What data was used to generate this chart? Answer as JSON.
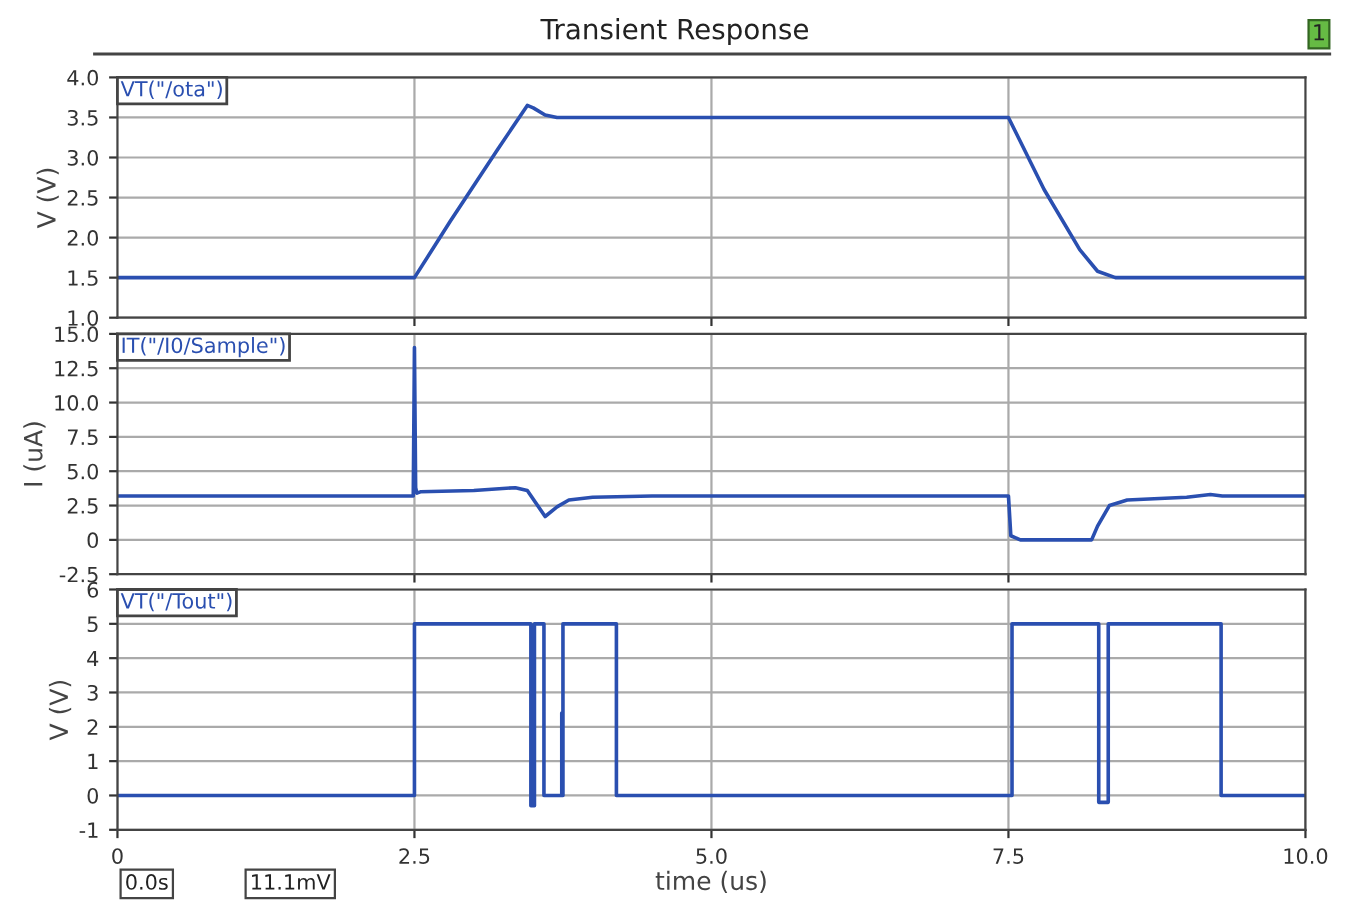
{
  "chart_data": [
    {
      "type": "line",
      "title": "Transient Response",
      "ylabel": "V (V)",
      "grid": true,
      "legend": "top left",
      "tick_labels": "y",
      "xlim": [
        0,
        10
      ],
      "xticks": [
        {
          "value": 2.5,
          "label": null
        },
        {
          "value": 5,
          "label": null
        },
        {
          "value": 7.5,
          "label": null
        }
      ],
      "ylim": [
        1,
        4
      ],
      "yticks": [
        {
          "value": 1,
          "label": "1.0"
        },
        {
          "value": 1.5,
          "label": "1.5"
        },
        {
          "value": 2,
          "label": "2.0"
        },
        {
          "value": 2.5,
          "label": "2.5"
        },
        {
          "value": 3,
          "label": "3.0"
        },
        {
          "value": 3.5,
          "label": "3.5"
        },
        {
          "value": 4,
          "label": "4.0"
        }
      ],
      "series": [
        {
          "name": "VT(\"/ota\")",
          "color": "#2a4fb0",
          "x": [
            0,
            2.5,
            2.8,
            3.2,
            3.45,
            3.5,
            3.6,
            3.7,
            7.5,
            7.55,
            7.8,
            8.1,
            8.25,
            8.4,
            10
          ],
          "values": [
            1.5,
            1.5,
            2.2,
            3.1,
            3.65,
            3.62,
            3.53,
            3.5,
            3.5,
            3.35,
            2.6,
            1.85,
            1.58,
            1.5,
            1.5
          ]
        }
      ],
      "annotations": [
        "1"
      ]
    },
    {
      "type": "line",
      "ylabel": "I (uA)",
      "grid": true,
      "legend": "top left",
      "tick_labels": "y",
      "xlim": [
        0,
        10
      ],
      "xticks": [
        {
          "value": 2.5,
          "label": null
        },
        {
          "value": 5,
          "label": null
        },
        {
          "value": 7.5,
          "label": null
        }
      ],
      "ylim": [
        -2.5,
        15
      ],
      "yticks": [
        {
          "value": -2.5,
          "label": "-2.5"
        },
        0,
        {
          "value": 2.5,
          "label": "2.5"
        },
        {
          "value": 5,
          "label": "5.0"
        },
        {
          "value": 7.5,
          "label": "7.5"
        },
        {
          "value": 10,
          "label": "10.0"
        },
        {
          "value": 12.5,
          "label": "12.5"
        },
        {
          "value": 15,
          "label": "15.0"
        }
      ],
      "series": [
        {
          "name": "IT(\"/I0/Sample\")",
          "color": "#2a4fb0",
          "x": [
            0,
            2.49,
            2.5,
            2.51,
            2.52,
            2.55,
            3.0,
            3.35,
            3.45,
            3.6,
            3.7,
            3.8,
            4.0,
            4.5,
            7.5,
            7.52,
            7.6,
            8.2,
            8.25,
            8.35,
            8.5,
            9.0,
            9.2,
            9.3,
            10
          ],
          "values": [
            3.2,
            3.2,
            14,
            3.8,
            3.4,
            3.5,
            3.6,
            3.8,
            3.6,
            1.7,
            2.4,
            2.9,
            3.1,
            3.2,
            3.2,
            0.3,
            0,
            0,
            1.0,
            2.5,
            2.9,
            3.1,
            3.3,
            3.2,
            3.2
          ]
        }
      ]
    },
    {
      "type": "line",
      "ylabel": "V (V)",
      "xlabel": "time (us)",
      "grid": true,
      "legend": "top left",
      "xlim": [
        0,
        10
      ],
      "xticks": [
        0,
        {
          "value": 2.5,
          "label": "2.5"
        },
        {
          "value": 5,
          "label": "5.0"
        },
        {
          "value": 7.5,
          "label": "7.5"
        },
        {
          "value": 10,
          "label": "10.0"
        }
      ],
      "ylim": [
        -1,
        6
      ],
      "yticks": [
        -1,
        0,
        1,
        2,
        3,
        4,
        5,
        6
      ],
      "series": [
        {
          "name": "VT(\"/Tout\")",
          "color": "#2a4fb0",
          "x": [
            0,
            2.5,
            2.5,
            3.48,
            3.48,
            3.51,
            3.51,
            3.59,
            3.59,
            3.74,
            3.74,
            3.75,
            3.75,
            4.2,
            4.2,
            7.53,
            7.53,
            8.26,
            8.26,
            8.34,
            8.34,
            9.29,
            9.29,
            10
          ],
          "values": [
            0,
            0,
            5,
            5,
            -0.3,
            -0.3,
            5,
            5,
            0,
            0,
            2.4,
            0,
            5,
            5,
            0,
            0,
            5,
            5,
            -0.2,
            -0.2,
            5,
            5,
            0,
            0
          ]
        }
      ],
      "annotations": [
        "0.0s",
        "11.1mV"
      ]
    }
  ]
}
